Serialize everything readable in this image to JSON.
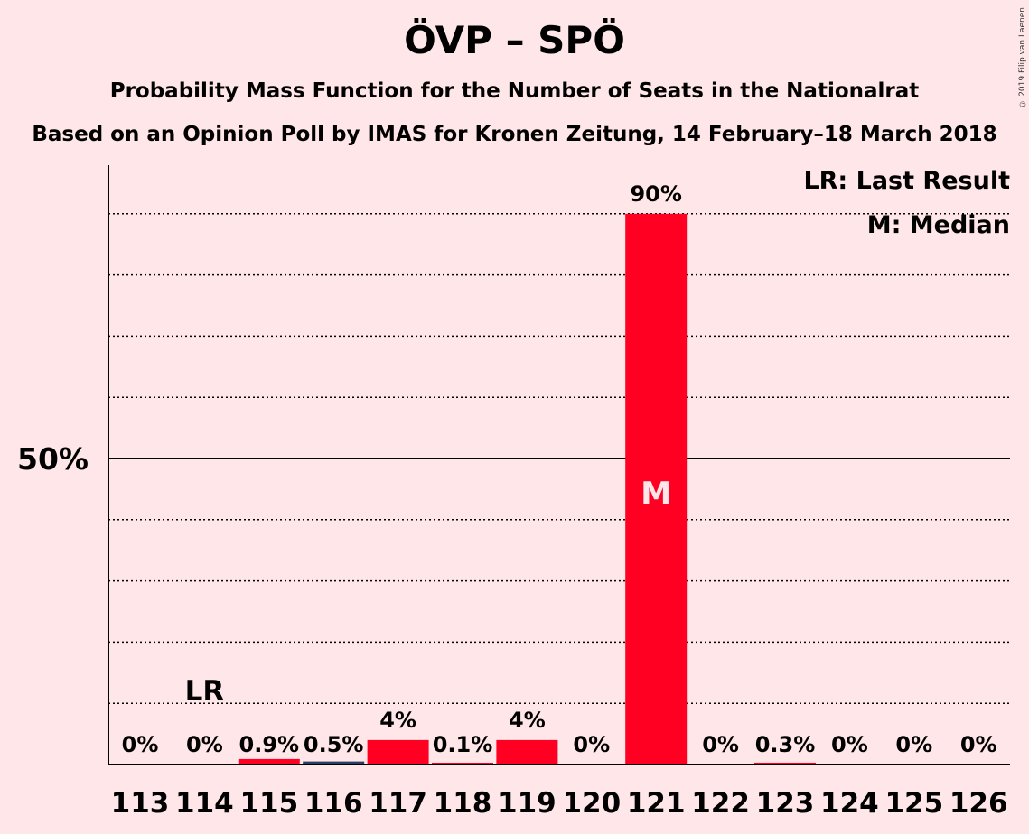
{
  "header": {
    "title": "ÖVP – SPÖ",
    "subtitle1": "Probability Mass Function for the Number of Seats in the Nationalrat",
    "subtitle2": "Based on an Opinion Poll by IMAS for Kronen Zeitung, 14 February–18 March 2018",
    "copyright": "© 2019 Filip van Laenen"
  },
  "legend": {
    "lr": "LR: Last Result",
    "m": "M: Median"
  },
  "chart_data": {
    "type": "bar",
    "categories": [
      "113",
      "114",
      "115",
      "116",
      "117",
      "118",
      "119",
      "120",
      "121",
      "122",
      "123",
      "124",
      "125",
      "126"
    ],
    "values": [
      0,
      0,
      0.9,
      0.5,
      4,
      0.1,
      4,
      0,
      90,
      0,
      0.3,
      0,
      0,
      0
    ],
    "labels": [
      "0%",
      "0%",
      "0.9%",
      "0.5%",
      "4%",
      "0.1%",
      "4%",
      "0%",
      "90%",
      "0%",
      "0.3%",
      "0%",
      "0%",
      "0%"
    ],
    "ylim": [
      0,
      98
    ],
    "yticks": [
      {
        "value": 50,
        "label": "50%"
      }
    ],
    "gridlines": [
      10,
      20,
      30,
      40,
      60,
      70,
      80,
      90
    ],
    "last_result": {
      "category": "114",
      "label": "LR"
    },
    "median": {
      "category": "121",
      "label": "M"
    },
    "legend_position": "top-right",
    "colors": {
      "bar": "#FF0022",
      "bar_small": "#2A3F5F",
      "background": "#FFE6E8",
      "axis": "#000000",
      "median_text": "#FFE6E8"
    }
  }
}
